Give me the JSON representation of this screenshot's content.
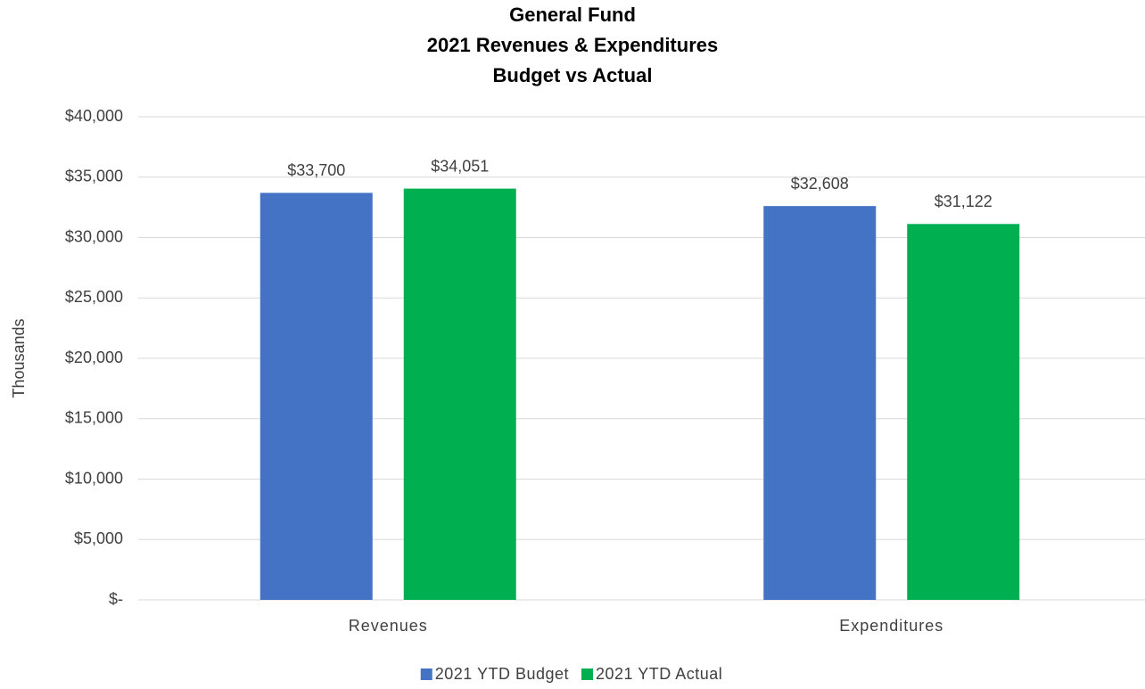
{
  "chart_data": {
    "type": "bar",
    "title": [
      "General Fund",
      "2021 Revenues & Expenditures",
      "Budget vs Actual"
    ],
    "ylabel": "Thousands",
    "categories": [
      "Revenues",
      "Expenditures"
    ],
    "series": [
      {
        "name": "2021 YTD Budget",
        "color": "#4472c4",
        "values": [
          33700,
          32608
        ],
        "value_labels": [
          "$33,700",
          "$32,608"
        ]
      },
      {
        "name": "2021 YTD Actual",
        "color": "#00b050",
        "values": [
          34051,
          31122
        ],
        "value_labels": [
          "$34,051",
          "$31,122"
        ]
      }
    ],
    "ylim": [
      0,
      40000
    ],
    "yticks": [
      {
        "value": 0,
        "label": "$-"
      },
      {
        "value": 5000,
        "label": "$5,000"
      },
      {
        "value": 10000,
        "label": "$10,000"
      },
      {
        "value": 15000,
        "label": "$15,000"
      },
      {
        "value": 20000,
        "label": "$20,000"
      },
      {
        "value": 25000,
        "label": "$25,000"
      },
      {
        "value": 30000,
        "label": "$30,000"
      },
      {
        "value": 35000,
        "label": "$35,000"
      },
      {
        "value": 40000,
        "label": "$40,000"
      }
    ],
    "grid": true,
    "legend": "bottom"
  }
}
